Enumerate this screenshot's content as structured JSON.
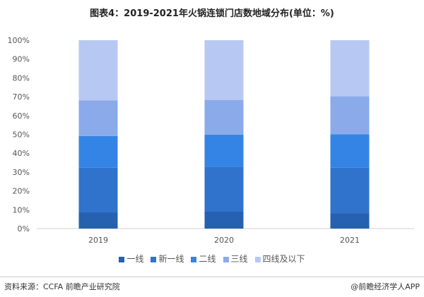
{
  "chart_data": {
    "type": "bar",
    "stacked": true,
    "title": "图表4：2019-2021年火锅连锁门店数地域分布(单位：%)",
    "categories": [
      "2019",
      "2020",
      "2021"
    ],
    "series": [
      {
        "name": "一线",
        "values": [
          8.6,
          9.0,
          8.2
        ],
        "color": "#2660b0"
      },
      {
        "name": "新一线",
        "values": [
          23.7,
          23.9,
          24.1
        ],
        "color": "#2f73cc"
      },
      {
        "name": "二线",
        "values": [
          16.8,
          17.0,
          17.8
        ],
        "color": "#3384e4"
      },
      {
        "name": "三线",
        "values": [
          19.0,
          18.4,
          20.1
        ],
        "color": "#8aaaea"
      },
      {
        "name": "四线及以下",
        "values": [
          31.9,
          31.7,
          29.8
        ],
        "color": "#b7c8f2"
      }
    ],
    "ylim": [
      0,
      100
    ],
    "yticks": [
      "0%",
      "10%",
      "20%",
      "30%",
      "40%",
      "50%",
      "60%",
      "70%",
      "80%",
      "90%",
      "100%"
    ],
    "grid": false,
    "legend": "bottom"
  },
  "footer": {
    "source": "资料来源：CCFA 前瞻产业研究院",
    "brand": "@前瞻经济学人APP"
  },
  "watermark": "前瞻产业研究院"
}
